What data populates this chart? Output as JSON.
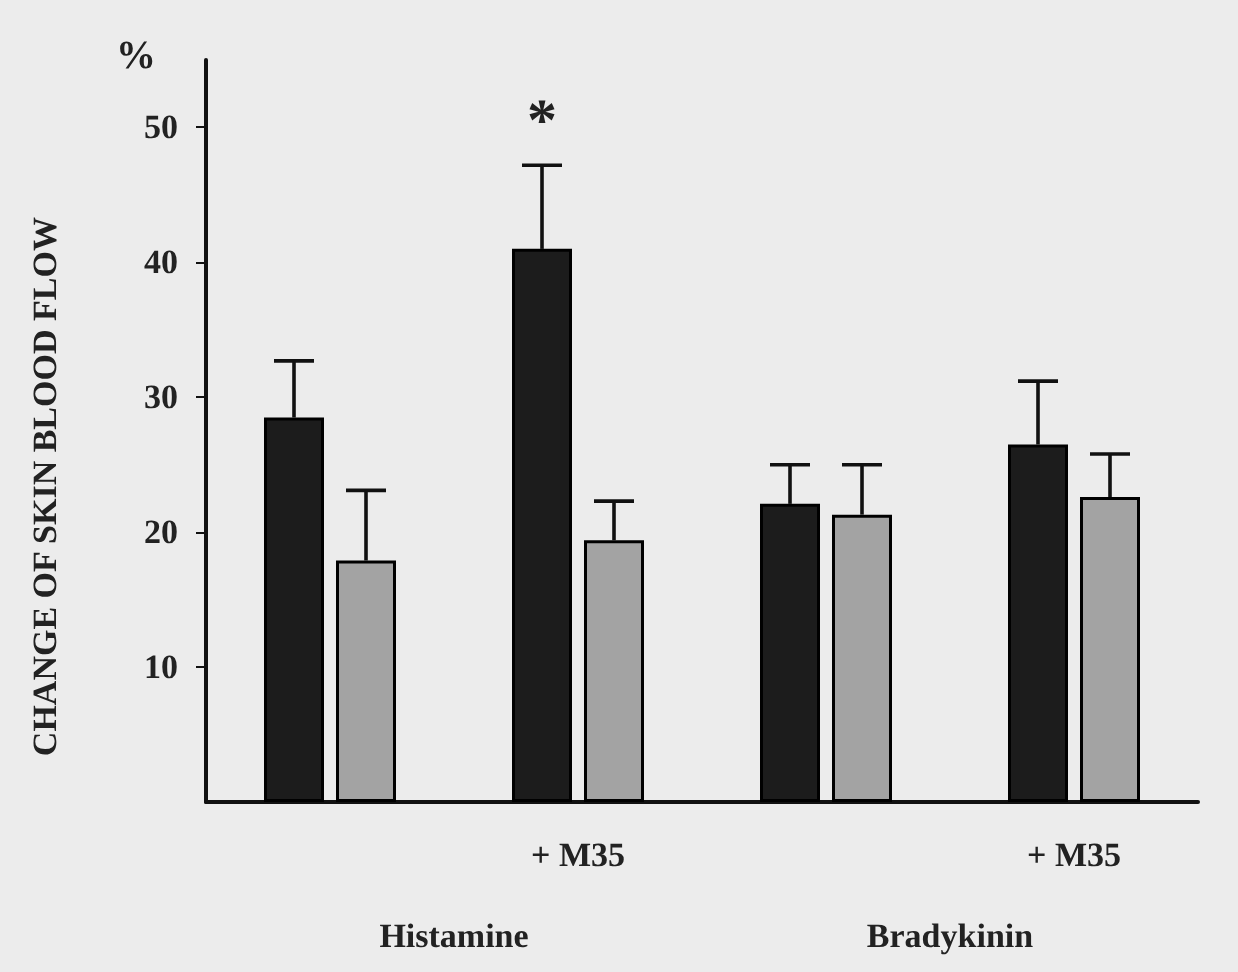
{
  "chart_data": {
    "type": "bar",
    "ylabel": "CHANGE OF SKIN BLOOD FLOW",
    "categories": [
      null,
      "+ M35",
      null,
      "+ M35"
    ],
    "series": [
      {
        "color": "#1c1c1c",
        "values": [
          28.5,
          41.0,
          22.1,
          26.5
        ],
        "errors": [
          [
            28.5,
            32.7
          ],
          [
            41.0,
            47.2
          ],
          [
            22.1,
            25.0
          ],
          [
            26.5,
            31.2
          ]
        ]
      },
      {
        "color": "#a3a3a3",
        "values": [
          17.9,
          19.4,
          21.3,
          22.6
        ],
        "errors": [
          [
            17.9,
            23.1
          ],
          [
            19.4,
            22.3
          ],
          [
            21.3,
            25.0
          ],
          [
            22.6,
            25.8
          ]
        ]
      }
    ],
    "ylim": [
      0,
      55
    ],
    "yticks": [
      10,
      20,
      30,
      40,
      50
    ],
    "grid": false,
    "annotations": [
      "%",
      "Histamine",
      "Bradykinin",
      "*"
    ]
  }
}
